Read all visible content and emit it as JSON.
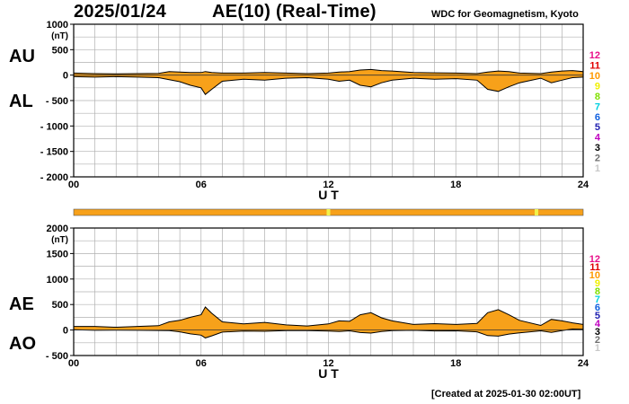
{
  "header": {
    "date": "2025/01/24",
    "title": "AE(10) (Real-Time)",
    "source": "WDC for Geomagnetism, Kyoto"
  },
  "footer": {
    "created": "[Created at 2025-01-30 02:00UT]"
  },
  "colors": {
    "fill": "#f7a11a",
    "line": "#000000",
    "grid": "#b0b0b0",
    "bar_ok": "#f7a11a",
    "bar_gap": "#f2f24a"
  },
  "legend": {
    "items": [
      {
        "label": "12",
        "color": "#e8108a"
      },
      {
        "label": "11",
        "color": "#e00000"
      },
      {
        "label": "10",
        "color": "#ff9900"
      },
      {
        "label": "9",
        "color": "#f0f000"
      },
      {
        "label": "8",
        "color": "#80e000"
      },
      {
        "label": "7",
        "color": "#00d0e0"
      },
      {
        "label": "6",
        "color": "#1060e0"
      },
      {
        "label": "5",
        "color": "#2020b0"
      },
      {
        "label": "4",
        "color": "#c000c0"
      },
      {
        "label": "3",
        "color": "#000000"
      },
      {
        "label": "2",
        "color": "#707070"
      },
      {
        "label": "1",
        "color": "#c8c8c8"
      }
    ]
  },
  "station_bar": {
    "gaps_hours": [
      12.0,
      21.8
    ]
  },
  "chart_data": [
    {
      "type": "area",
      "id": "au_al",
      "series_labels": [
        "AU",
        "AL"
      ],
      "unit": "(nT)",
      "xlabel": "U T",
      "x_ticks": [
        0,
        6,
        12,
        18,
        24
      ],
      "x_tick_labels": [
        "00",
        "06",
        "12",
        "18",
        "24"
      ],
      "xlim": [
        0,
        24
      ],
      "ylim": [
        -2000,
        1000
      ],
      "y_ticks": [
        1000,
        500,
        0,
        -500,
        -1000,
        -1500,
        -2000
      ],
      "y_tick_labels": [
        "1000",
        "500",
        "0",
        "- 500",
        "- 1000",
        "- 1500",
        "- 2000"
      ],
      "grid": true,
      "x": [
        0,
        1,
        2,
        3,
        4,
        4.5,
        5,
        5.5,
        6,
        6.2,
        6.5,
        7,
        8,
        9,
        10,
        11,
        12,
        12.5,
        13,
        13.5,
        14,
        14.5,
        15,
        16,
        17,
        18,
        19,
        19.5,
        20,
        20.5,
        21,
        22,
        22.5,
        23,
        23.5,
        24
      ],
      "au": [
        40,
        30,
        25,
        30,
        35,
        70,
        60,
        50,
        50,
        70,
        50,
        40,
        40,
        50,
        40,
        30,
        40,
        60,
        70,
        100,
        110,
        90,
        80,
        50,
        45,
        40,
        30,
        60,
        80,
        70,
        40,
        30,
        60,
        80,
        90,
        70
      ],
      "al": [
        -30,
        -40,
        -30,
        -40,
        -50,
        -90,
        -130,
        -200,
        -250,
        -380,
        -280,
        -120,
        -80,
        -100,
        -60,
        -50,
        -80,
        -120,
        -100,
        -200,
        -230,
        -150,
        -100,
        -60,
        -80,
        -70,
        -100,
        -280,
        -320,
        -230,
        -150,
        -60,
        -150,
        -100,
        -50,
        -40
      ]
    },
    {
      "type": "area",
      "id": "ae_ao",
      "series_labels": [
        "AE",
        "AO"
      ],
      "unit": "(nT)",
      "xlabel": "U T",
      "x_ticks": [
        0,
        6,
        12,
        18,
        24
      ],
      "x_tick_labels": [
        "00",
        "06",
        "12",
        "18",
        "24"
      ],
      "xlim": [
        0,
        24
      ],
      "ylim": [
        -500,
        2000
      ],
      "y_ticks": [
        2000,
        1500,
        1000,
        500,
        0,
        -500
      ],
      "y_tick_labels": [
        "2000",
        "1500",
        "1000",
        "500",
        "0",
        "- 500"
      ],
      "grid": true,
      "x": [
        0,
        1,
        2,
        3,
        4,
        4.5,
        5,
        5.5,
        6,
        6.2,
        6.5,
        7,
        8,
        9,
        10,
        11,
        12,
        12.5,
        13,
        13.5,
        14,
        14.5,
        15,
        16,
        17,
        18,
        19,
        19.5,
        20,
        20.5,
        21,
        22,
        22.5,
        23,
        23.5,
        24
      ],
      "ae": [
        70,
        70,
        55,
        70,
        85,
        160,
        190,
        250,
        300,
        450,
        330,
        160,
        120,
        150,
        100,
        80,
        120,
        180,
        170,
        300,
        340,
        240,
        180,
        110,
        125,
        110,
        130,
        340,
        400,
        300,
        190,
        90,
        210,
        180,
        140,
        110
      ],
      "ao": [
        5,
        -5,
        -3,
        -5,
        -8,
        -10,
        -35,
        -75,
        -100,
        -155,
        -115,
        -40,
        -20,
        -25,
        -10,
        -10,
        -20,
        -30,
        -15,
        -50,
        -60,
        -30,
        -10,
        -5,
        -18,
        -15,
        -35,
        -110,
        -120,
        -80,
        -55,
        -15,
        -45,
        -10,
        20,
        15
      ]
    }
  ]
}
